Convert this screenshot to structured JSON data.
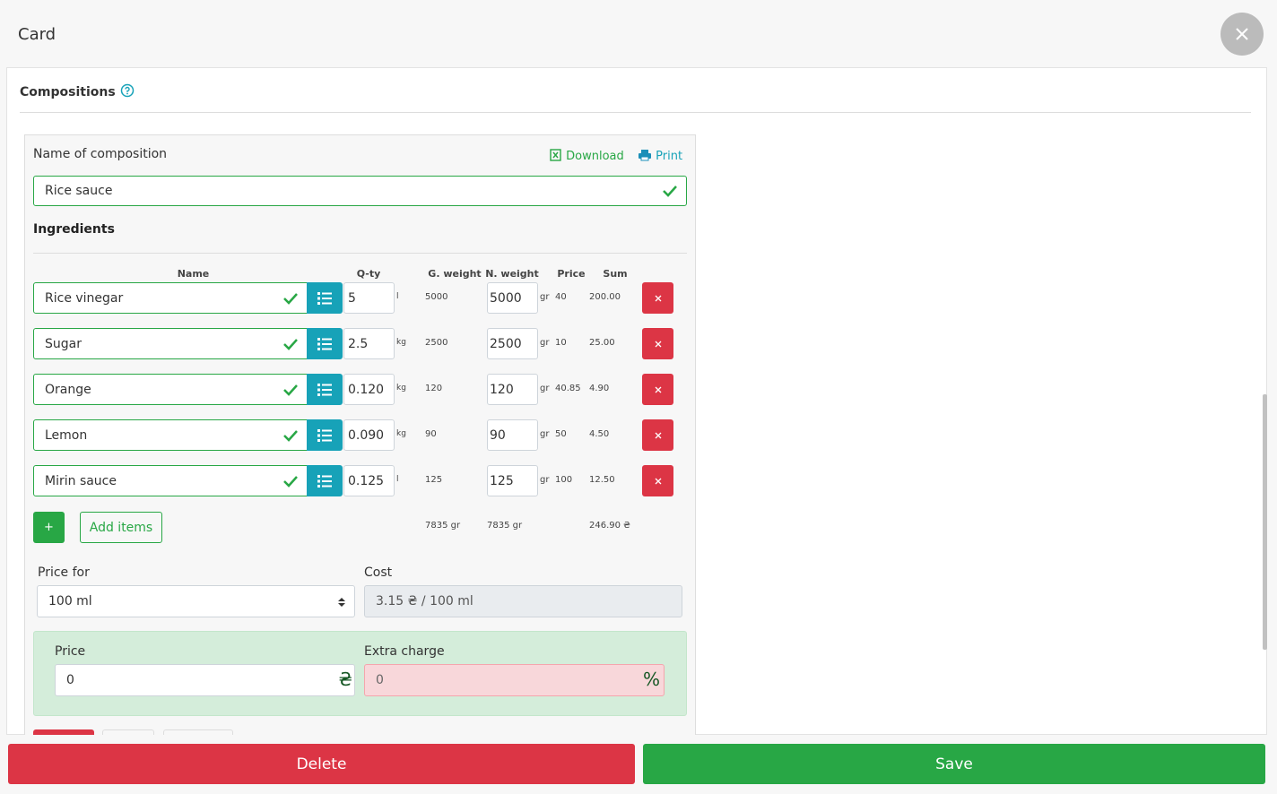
{
  "header": {
    "title": "Card"
  },
  "section": {
    "title": "Compositions"
  },
  "composition": {
    "name_label": "Name of composition",
    "download": "Download",
    "print": "Print",
    "name": "Rice sauce"
  },
  "ingredients": {
    "title": "Ingredients",
    "columns": {
      "name": "Name",
      "qty": "Q-ty",
      "g_weight": "G. weight",
      "n_weight": "N. weight",
      "price": "Price",
      "sum": "Sum"
    },
    "rows": [
      {
        "name": "Rice vinegar",
        "qty": "5",
        "qty_unit": "l",
        "g_weight": "5000",
        "n_weight": "5000",
        "n_unit": "gr",
        "price": "40",
        "sum": "200.00"
      },
      {
        "name": "Sugar",
        "qty": "2.5",
        "qty_unit": "kg",
        "g_weight": "2500",
        "n_weight": "2500",
        "n_unit": "gr",
        "price": "10",
        "sum": "25.00"
      },
      {
        "name": "Orange",
        "qty": "0.120",
        "qty_unit": "kg",
        "g_weight": "120",
        "n_weight": "120",
        "n_unit": "gr",
        "price": "40.85",
        "sum": "4.90"
      },
      {
        "name": "Lemon",
        "qty": "0.090",
        "qty_unit": "kg",
        "g_weight": "90",
        "n_weight": "90",
        "n_unit": "gr",
        "price": "50",
        "sum": "4.50"
      },
      {
        "name": "Mirin sauce",
        "qty": "0.125",
        "qty_unit": "l",
        "g_weight": "125",
        "n_weight": "125",
        "n_unit": "gr",
        "price": "100",
        "sum": "12.50"
      }
    ],
    "totals": {
      "g_weight": "7835 gr",
      "n_weight": "7835 gr",
      "sum": "246.90 ₴"
    },
    "add_button": "+",
    "add_items": "Add items"
  },
  "pricing": {
    "price_for_label": "Price for",
    "price_for": "100 ml",
    "cost_label": "Cost",
    "cost": "3.15 ₴ / 100 ml",
    "price_label": "Price",
    "price": "0",
    "currency": "₴",
    "extra_label": "Extra charge",
    "extra": "0",
    "extra_unit": "%"
  },
  "footer": {
    "delete": "Delete",
    "save": "Save"
  }
}
